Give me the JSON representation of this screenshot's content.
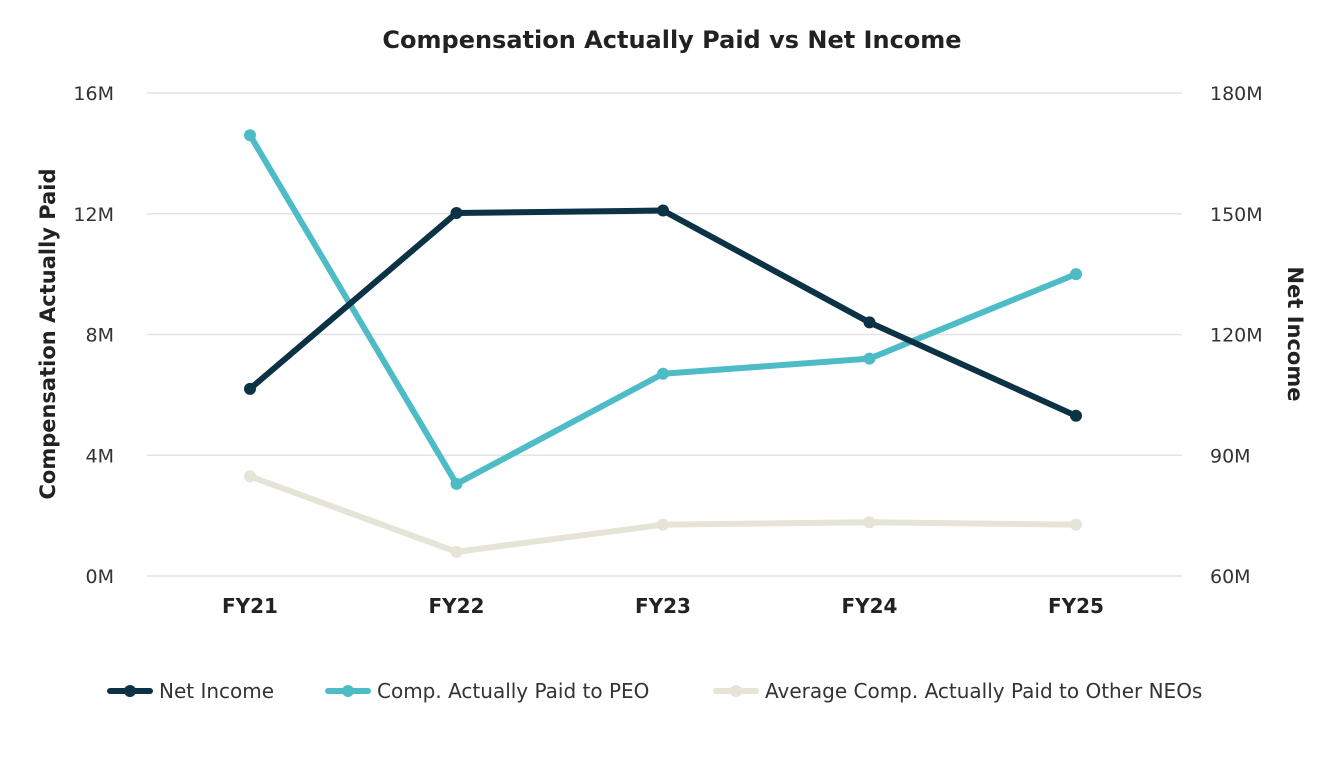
{
  "chart_data": {
    "type": "line",
    "title": "Compensation Actually Paid vs Net Income",
    "categories": [
      "FY21",
      "FY22",
      "FY23",
      "FY24",
      "FY25"
    ],
    "y_left": {
      "label": "Compensation Actually Paid",
      "range": [
        0,
        16000000
      ],
      "ticks": [
        0,
        4000000,
        8000000,
        12000000,
        16000000
      ],
      "tick_labels": [
        "0M",
        "4M",
        "8M",
        "12M",
        "16M"
      ]
    },
    "y_right": {
      "label": "Net Income",
      "range": [
        60000000,
        180000000
      ],
      "ticks": [
        60000000,
        90000000,
        120000000,
        150000000,
        180000000
      ],
      "tick_labels": [
        "60M",
        "90M",
        "120M",
        "150M",
        "180M"
      ]
    },
    "grid": true,
    "legend_position": "bottom",
    "series": [
      {
        "name": "Net Income",
        "axis": "right",
        "color": "#0b3345",
        "values": [
          106500000,
          150200000,
          150800000,
          123000000,
          99800000
        ]
      },
      {
        "name": "Comp. Actually Paid to PEO",
        "axis": "left",
        "color": "#4dbcc7",
        "values": [
          14600000,
          3050000,
          6700000,
          7200000,
          10000000
        ]
      },
      {
        "name": "Average Comp. Actually Paid to Other NEOs",
        "axis": "left",
        "color": "#e6e3d7",
        "values": [
          3300000,
          800000,
          1700000,
          1780000,
          1700000
        ]
      }
    ]
  }
}
